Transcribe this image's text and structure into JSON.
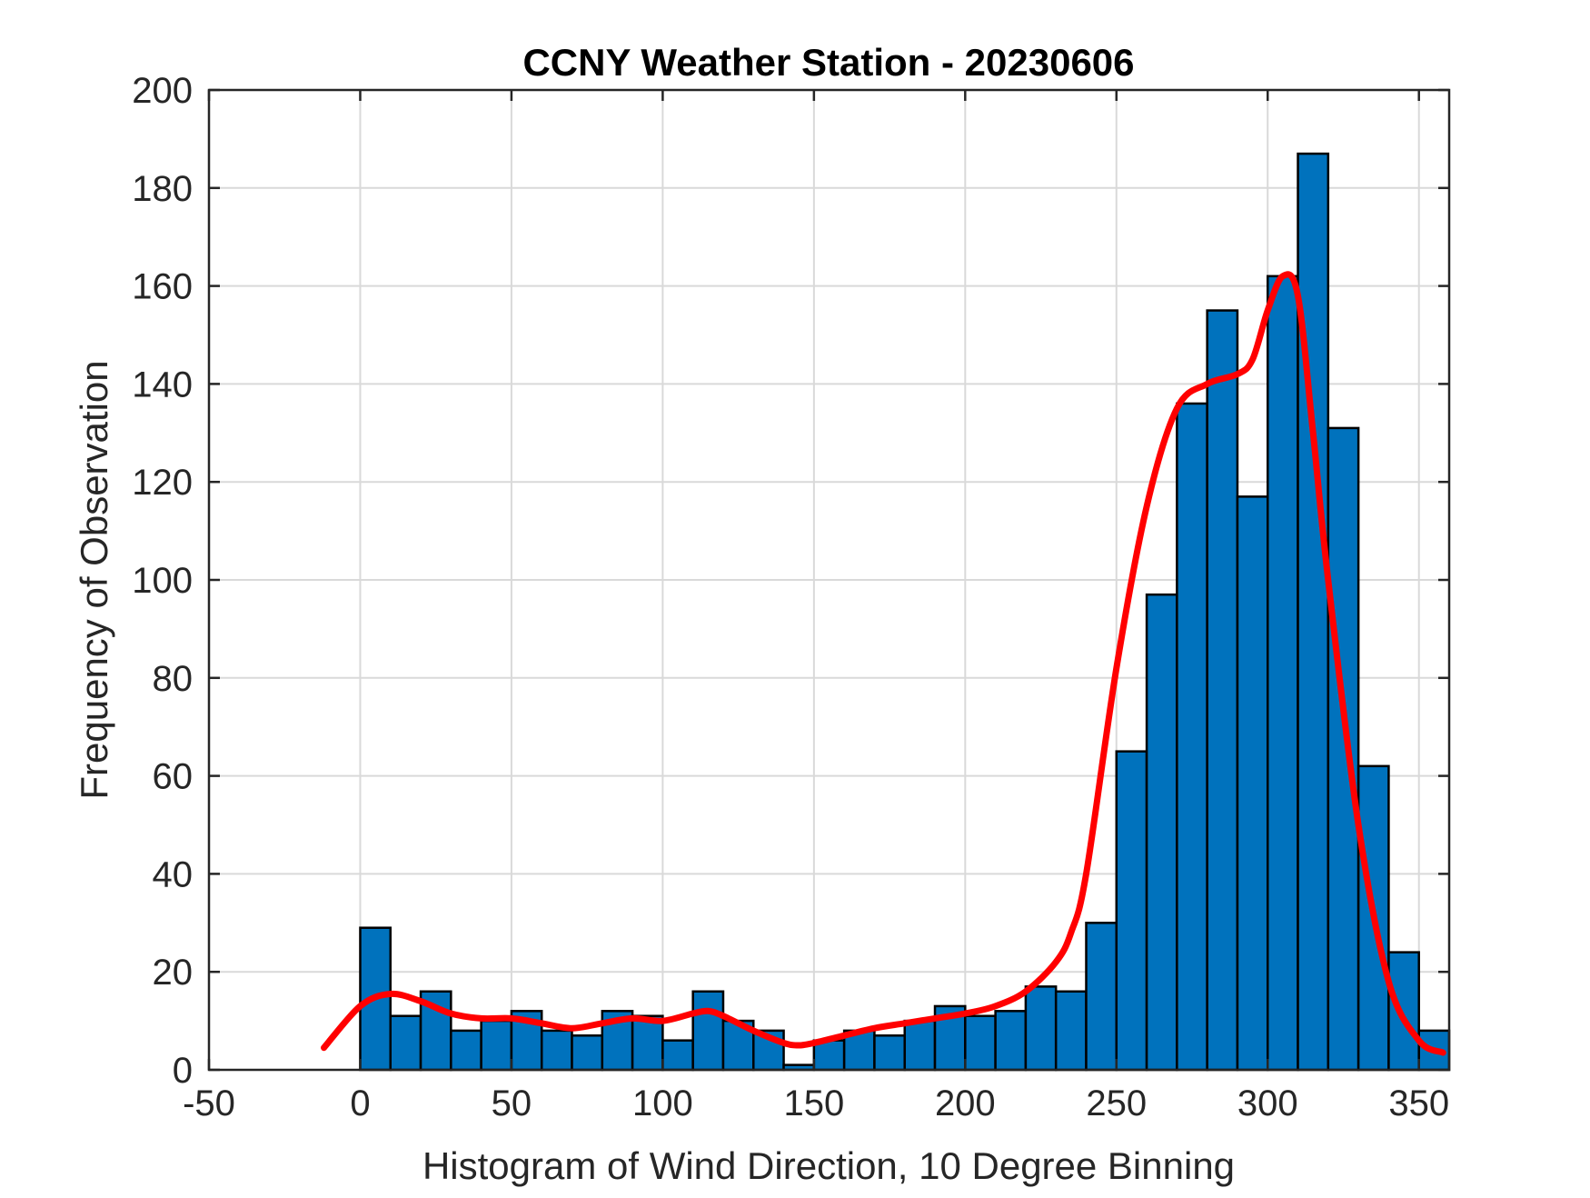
{
  "chart_data": {
    "type": "bar",
    "title": "CCNY Weather Station - 20230606",
    "xlabel": "Histogram of Wind Direction, 10 Degree Binning",
    "ylabel": "Frequency of Observation",
    "xlim": [
      -50,
      360
    ],
    "ylim": [
      0,
      200
    ],
    "xticks": [
      -50,
      0,
      50,
      100,
      150,
      200,
      250,
      300,
      350
    ],
    "yticks": [
      0,
      20,
      40,
      60,
      80,
      100,
      120,
      140,
      160,
      180,
      200
    ],
    "grid": true,
    "bin_width": 10,
    "bin_edges": [
      0,
      10,
      20,
      30,
      40,
      50,
      60,
      70,
      80,
      90,
      100,
      110,
      120,
      130,
      140,
      150,
      160,
      170,
      180,
      190,
      200,
      210,
      220,
      230,
      240,
      250,
      260,
      270,
      280,
      290,
      300,
      310,
      320,
      330,
      340,
      350,
      360
    ],
    "counts": [
      29,
      11,
      16,
      8,
      10,
      12,
      8,
      7,
      12,
      11,
      6,
      16,
      10,
      8,
      1,
      6,
      8,
      7,
      10,
      13,
      11,
      12,
      17,
      16,
      30,
      65,
      97,
      136,
      155,
      117,
      162,
      187,
      131,
      62,
      24,
      8
    ],
    "bar_color": "#0072BD",
    "bar_edge_color": "#000000",
    "curve_color": "#FF0000",
    "curve": {
      "name": "smoothed distribution",
      "x": [
        -12,
        0,
        10,
        20,
        30,
        40,
        50,
        60,
        70,
        80,
        90,
        100,
        110,
        115,
        120,
        130,
        140,
        145,
        150,
        160,
        170,
        180,
        190,
        200,
        210,
        220,
        230,
        235,
        240,
        250,
        260,
        270,
        280,
        290,
        295,
        300,
        305,
        310,
        315,
        320,
        330,
        340,
        350,
        358
      ],
      "y": [
        4.5,
        13,
        15.5,
        14,
        11.5,
        10.5,
        10.5,
        9.5,
        8.5,
        9.5,
        10.5,
        10,
        11.5,
        12,
        11,
        8,
        5.5,
        5,
        5.5,
        7,
        8.5,
        9.5,
        10.5,
        11.5,
        13,
        16,
        22,
        28,
        40,
        82,
        115,
        135,
        140,
        142,
        145,
        155,
        162,
        158,
        130,
        100,
        50,
        18,
        6,
        3.5
      ]
    }
  }
}
